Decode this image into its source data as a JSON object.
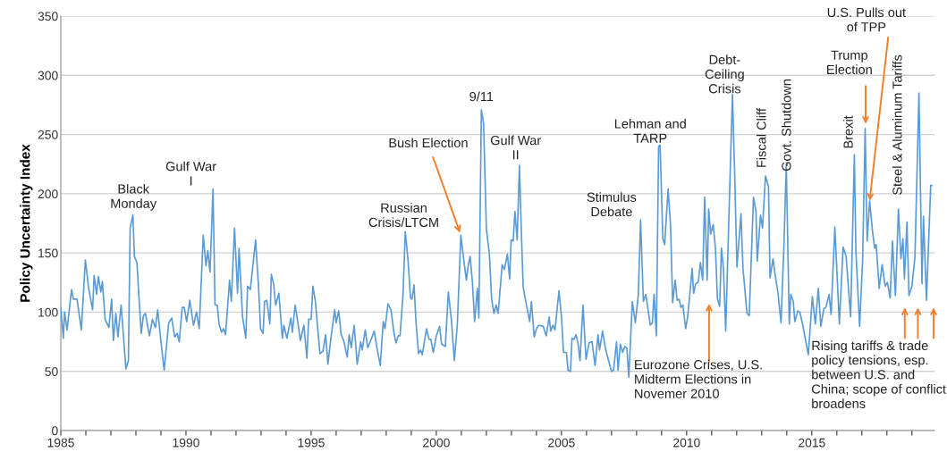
{
  "chart_data": {
    "type": "line",
    "ylabel": "Policy Uncertainty Index",
    "xlim": [
      1985,
      2019.9
    ],
    "ylim": [
      0,
      350
    ],
    "yticks": [
      0,
      50,
      100,
      150,
      200,
      250,
      300,
      350
    ],
    "xticks": [
      1985,
      {
        "value": 1986,
        "label": null
      },
      {
        "value": 1987,
        "label": null
      },
      {
        "value": 1988,
        "label": null
      },
      {
        "value": 1989,
        "label": null
      },
      1990,
      {
        "value": 1991,
        "label": null
      },
      {
        "value": 1992,
        "label": null
      },
      {
        "value": 1993,
        "label": null
      },
      {
        "value": 1994,
        "label": null
      },
      1995,
      {
        "value": 1996,
        "label": null
      },
      {
        "value": 1997,
        "label": null
      },
      {
        "value": 1998,
        "label": null
      },
      {
        "value": 1999,
        "label": null
      },
      2000,
      {
        "value": 2001,
        "label": null
      },
      {
        "value": 2002,
        "label": null
      },
      {
        "value": 2003,
        "label": null
      },
      {
        "value": 2004,
        "label": null
      },
      2005,
      {
        "value": 2006,
        "label": null
      },
      {
        "value": 2007,
        "label": null
      },
      {
        "value": 2008,
        "label": null
      },
      {
        "value": 2009,
        "label": null
      },
      2010,
      {
        "value": 2011,
        "label": null
      },
      {
        "value": 2012,
        "label": null
      },
      {
        "value": 2013,
        "label": null
      },
      {
        "value": 2014,
        "label": null
      },
      2015,
      {
        "value": 2016,
        "label": null
      },
      {
        "value": 2017,
        "label": null
      },
      {
        "value": 2018,
        "label": null
      },
      {
        "value": 2019,
        "label": null
      }
    ],
    "grid": "y",
    "series": [
      {
        "color": "#5b9bd5",
        "x": [
          1985.0,
          1985.1,
          1985.15,
          1985.25,
          1985.43,
          1985.5,
          1985.65,
          1985.82,
          1985.98,
          1986.12,
          1986.27,
          1986.33,
          1986.43,
          1986.5,
          1986.6,
          1986.66,
          1986.77,
          1986.92,
          1987.03,
          1987.1,
          1987.2,
          1987.28,
          1987.41,
          1987.6,
          1987.7,
          1987.77,
          1987.88,
          1987.94,
          1988.04,
          1988.21,
          1988.3,
          1988.38,
          1988.54,
          1988.66,
          1988.78,
          1988.87,
          1988.98,
          1989.13,
          1989.31,
          1989.43,
          1989.55,
          1989.65,
          1989.73,
          1989.85,
          1989.93,
          1990.03,
          1990.15,
          1990.3,
          1990.42,
          1990.53,
          1990.69,
          1990.8,
          1990.87,
          1990.96,
          1991.08,
          1991.16,
          1991.25,
          1991.32,
          1991.42,
          1991.5,
          1991.58,
          1991.74,
          1991.81,
          1991.94,
          1992.06,
          1992.12,
          1992.26,
          1992.39,
          1992.46,
          1992.57,
          1992.78,
          1992.9,
          1992.98,
          1993.08,
          1993.14,
          1993.23,
          1993.35,
          1993.41,
          1993.5,
          1993.58,
          1993.71,
          1993.85,
          1993.91,
          1994.03,
          1994.19,
          1994.25,
          1994.36,
          1994.47,
          1994.57,
          1994.71,
          1994.83,
          1994.9,
          1995.0,
          1995.07,
          1995.17,
          1995.35,
          1995.47,
          1995.58,
          1995.67,
          1995.79,
          1995.94,
          1996.0,
          1996.1,
          1996.2,
          1996.3,
          1996.44,
          1996.52,
          1996.6,
          1996.72,
          1996.84,
          1996.98,
          1997.04,
          1997.16,
          1997.26,
          1997.38,
          1997.52,
          1997.62,
          1997.76,
          1997.88,
          1997.95,
          1998.07,
          1998.19,
          1998.31,
          1998.39,
          1998.48,
          1998.55,
          1998.67,
          1998.76,
          1998.87,
          1998.97,
          1999.03,
          1999.11,
          1999.19,
          1999.29,
          1999.37,
          1999.44,
          1999.5,
          1999.61,
          1999.71,
          1999.78,
          1999.88,
          2000.0,
          2000.13,
          2000.21,
          2000.36,
          2000.48,
          2000.6,
          2000.72,
          2000.84,
          2000.98,
          2001.08,
          2001.2,
          2001.28,
          2001.35,
          2001.44,
          2001.53,
          2001.64,
          2001.7,
          2001.8,
          2001.89,
          2002.0,
          2002.12,
          2002.21,
          2002.3,
          2002.39,
          2002.47,
          2002.63,
          2002.72,
          2002.84,
          2002.93,
          2002.99,
          2003.07,
          2003.14,
          2003.23,
          2003.32,
          2003.38,
          2003.47,
          2003.61,
          2003.73,
          2003.8,
          2003.91,
          2004.0,
          2004.1,
          2004.27,
          2004.39,
          2004.51,
          2004.57,
          2004.66,
          2004.74,
          2004.9,
          2005.0,
          2005.08,
          2005.2,
          2005.26,
          2005.36,
          2005.42,
          2005.5,
          2005.58,
          2005.66,
          2005.74,
          2005.86,
          2005.98,
          2006.1,
          2006.22,
          2006.34,
          2006.46,
          2006.52,
          2006.64,
          2006.76,
          2006.87,
          2007.0,
          2007.08,
          2007.2,
          2007.26,
          2007.35,
          2007.44,
          2007.53,
          2007.61,
          2007.69,
          2007.83,
          2007.95,
          2008.07,
          2008.16,
          2008.27,
          2008.37,
          2008.55,
          2008.63,
          2008.7,
          2008.79,
          2008.88,
          2008.94,
          2009.05,
          2009.12,
          2009.26,
          2009.36,
          2009.44,
          2009.54,
          2009.62,
          2009.7,
          2009.77,
          2009.85,
          2009.96,
          2010.04,
          2010.13,
          2010.22,
          2010.28,
          2010.36,
          2010.46,
          2010.55,
          2010.64,
          2010.72,
          2010.82,
          2010.88,
          2010.96,
          2011.06,
          2011.15,
          2011.23,
          2011.32,
          2011.39,
          2011.47,
          2011.56,
          2011.69,
          2011.83,
          2011.92,
          2012.01,
          2012.17,
          2012.25,
          2012.41,
          2012.5,
          2012.67,
          2012.77,
          2012.82,
          2012.95,
          2013.03,
          2013.15,
          2013.27,
          2013.33,
          2013.45,
          2013.53,
          2013.65,
          2013.77,
          2013.89,
          2013.98,
          2014.1,
          2014.16,
          2014.26,
          2014.32,
          2014.44,
          2014.52,
          2014.64,
          2014.86,
          2015.02,
          2015.14,
          2015.26,
          2015.36,
          2015.48,
          2015.56,
          2015.62,
          2015.69,
          2015.77,
          2015.92,
          2016.1,
          2016.25,
          2016.37,
          2016.55,
          2016.7,
          2016.76,
          2016.91,
          2017.03,
          2017.13,
          2017.21,
          2017.31,
          2017.42,
          2017.51,
          2017.57,
          2017.69,
          2017.81,
          2017.93,
          2018.02,
          2018.13,
          2018.22,
          2018.34,
          2018.46,
          2018.56,
          2018.64,
          2018.7,
          2018.8,
          2018.88,
          2019.0,
          2019.12,
          2019.28,
          2019.4,
          2019.46,
          2019.58,
          2019.75,
          2019.8
        ],
        "values": [
          104,
          78,
          100,
          85,
          119,
          111,
          111,
          85,
          144,
          119,
          102,
          131,
          115,
          130,
          117,
          126,
          94,
          87,
          111,
          76,
          99,
          79,
          106,
          52,
          59,
          171,
          182,
          147,
          142,
          82,
          97,
          99,
          80,
          94,
          87,
          102,
          79,
          51,
          91,
          95,
          79,
          82,
          75,
          104,
          104,
          92,
          110,
          89,
          100,
          86,
          165,
          139,
          152,
          134,
          204,
          106,
          106,
          90,
          83,
          86,
          81,
          127,
          109,
          171,
          116,
          154,
          96,
          78,
          122,
          119,
          161,
          121,
          86,
          82,
          109,
          110,
          90,
          132,
          124,
          106,
          116,
          78,
          89,
          78,
          95,
          83,
          106,
          91,
          76,
          89,
          61,
          94,
          94,
          122,
          109,
          65,
          67,
          81,
          56,
          78,
          102,
          91,
          101,
          81,
          76,
          62,
          81,
          70,
          89,
          56,
          75,
          68,
          85,
          70,
          76,
          84,
          71,
          55,
          92,
          86,
          107,
          102,
          82,
          74,
          80,
          80,
          115,
          168,
          144,
          112,
          111,
          123,
          91,
          65,
          68,
          64,
          72,
          86,
          77,
          77,
          66,
          80,
          88,
          73,
          71,
          117,
          94,
          59,
          90,
          165,
          147,
          127,
          140,
          147,
          126,
          92,
          120,
          95,
          271,
          259,
          170,
          149,
          111,
          99,
          106,
          99,
          140,
          136,
          149,
          128,
          161,
          160,
          185,
          161,
          224,
          179,
          121,
          105,
          92,
          109,
          79,
          86,
          89,
          88,
          80,
          96,
          84,
          89,
          85,
          118,
          96,
          66,
          66,
          51,
          50,
          78,
          77,
          81,
          74,
          59,
          106,
          60,
          74,
          75,
          55,
          81,
          68,
          84,
          69,
          60,
          50,
          51,
          75,
          51,
          73,
          66,
          71,
          70,
          45,
          109,
          91,
          115,
          178,
          109,
          115,
          89,
          91,
          115,
          80,
          240,
          241,
          162,
          157,
          204,
          172,
          108,
          127,
          110,
          111,
          104,
          106,
          86,
          96,
          116,
          137,
          116,
          124,
          125,
          142,
          127,
          197,
          127,
          187,
          166,
          174,
          154,
          111,
          105,
          154,
          137,
          84,
          182,
          284,
          215,
          138,
          183,
          137,
          99,
          97,
          197,
          185,
          143,
          182,
          171,
          215,
          206,
          129,
          145,
          132,
          116,
          91,
          159,
          225,
          90,
          115,
          109,
          92,
          101,
          100,
          89,
          64,
          113,
          90,
          120,
          88,
          103,
          104,
          109,
          115,
          98,
          172,
          90,
          155,
          147,
          96,
          233,
          152,
          88,
          144,
          255,
          160,
          194,
          169,
          154,
          157,
          120,
          140,
          122,
          125,
          112,
          160,
          114,
          187,
          145,
          162,
          128,
          176,
          114,
          122,
          147,
          285,
          124,
          181,
          110,
          207,
          207
        ]
      }
    ],
    "annotations": [
      {
        "text": "Black\nMonday",
        "x": 1987.88,
        "y": 182
      },
      {
        "text": "Gulf War\nI",
        "x": 1991.08,
        "y": 204
      },
      {
        "text": "Russian\nCrisis/LTCM",
        "x": 1998.76,
        "y": 168
      },
      {
        "text": "Bush Election",
        "x": 2000.98,
        "y": 165
      },
      {
        "text": "9/11",
        "x": 2001.8,
        "y": 271
      },
      {
        "text": "Gulf War\nII",
        "x": 2003.32,
        "y": 224
      },
      {
        "text": "Stimulus\nDebate",
        "x": 2008.16,
        "y": 178
      },
      {
        "text": "Lehman and\nTARP",
        "x": 2008.94,
        "y": 241
      },
      "Eurozone Crises, U.S.\nMidterm Elections in\nNovemer 2010",
      {
        "text": "Debt-\nCeiling\nCrisis",
        "x": 2011.83,
        "y": 284
      },
      {
        "text": "Fiscal Cliff",
        "x": 2013.15,
        "y": 215
      },
      {
        "text": "Govt. Shutdown",
        "x": 2013.98,
        "y": 225
      },
      {
        "text": "Brexit",
        "x": 2016.7,
        "y": 233
      },
      {
        "text": "Trump\nElection",
        "x": 2017.15,
        "y": 259
      },
      {
        "text": "U.S. Pulls out\nof TPP",
        "x": 2017.31,
        "y": 194
      },
      {
        "text": "Steel & Aluminum Tariffs",
        "x": 2018.46,
        "y": 187
      },
      "Rising tariffs & trade\npolicy tensions, esp.\nbetween U.S. and\nChina; scope of conflict\nbroadens"
    ]
  }
}
